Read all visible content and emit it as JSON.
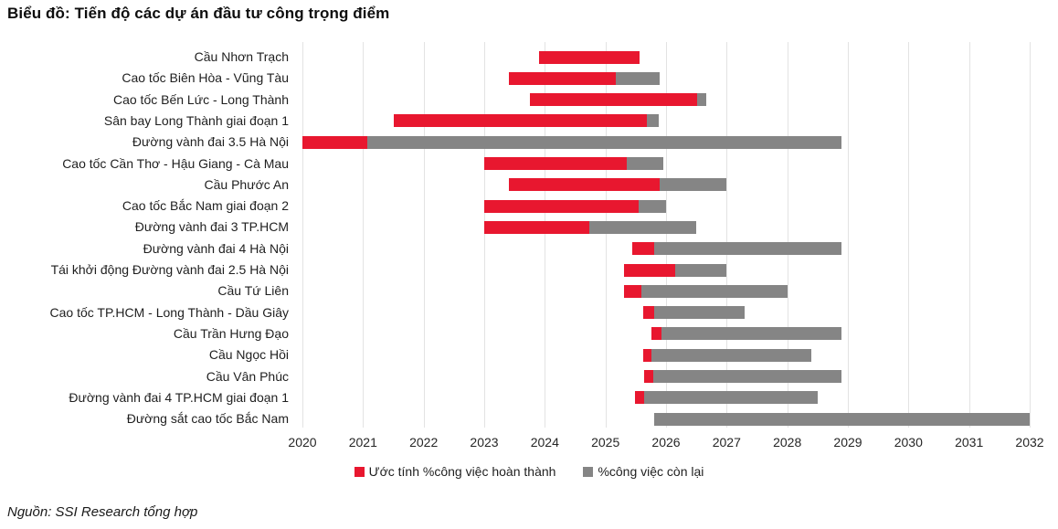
{
  "title": "Biểu đồ: Tiến độ các dự án đầu tư công trọng điểm",
  "source": "Nguồn: SSI Research tổng hợp",
  "colors": {
    "completed": "#E8172F",
    "remaining": "#858585",
    "gridline": "#E3E3E3"
  },
  "chart_data": {
    "type": "bar",
    "subtype": "horizontal-gantt-progress",
    "title": "Biểu đồ: Tiến độ các dự án đầu tư công trọng điểm",
    "xlabel": "",
    "ylabel": "",
    "grid": "vertical",
    "legend_position": "bottom-center",
    "x_axis": {
      "min": 2020,
      "max": 2032,
      "ticks": [
        2020,
        2021,
        2022,
        2023,
        2024,
        2025,
        2026,
        2027,
        2028,
        2029,
        2030,
        2031,
        2032
      ]
    },
    "legend": [
      {
        "key": "completed",
        "label": "Ước tính %công việc hoàn thành",
        "color": "#E8172F"
      },
      {
        "key": "remaining",
        "label": "%công việc còn lại",
        "color": "#858585"
      }
    ],
    "projects": [
      {
        "label": "Cầu Nhơn Trạch",
        "start": 2023.9,
        "complete_until": 2025.57,
        "end": 2025.57
      },
      {
        "label": "Cao tốc Biên Hòa - Vũng Tàu",
        "start": 2023.4,
        "complete_until": 2025.17,
        "end": 2025.9
      },
      {
        "label": "Cao tốc Bến Lức - Long Thành",
        "start": 2023.75,
        "complete_until": 2026.51,
        "end": 2026.66
      },
      {
        "label": "Sân bay Long Thành giai đoạn 1",
        "start": 2021.5,
        "complete_until": 2025.68,
        "end": 2025.88
      },
      {
        "label": "Đường vành đai 3.5 Hà Nội",
        "start": 2020.0,
        "complete_until": 2021.07,
        "end": 2028.9
      },
      {
        "label": "Cao tốc Cần Thơ - Hậu Giang - Cà Mau",
        "start": 2023.0,
        "complete_until": 2025.35,
        "end": 2025.96
      },
      {
        "label": "Cầu Phước An",
        "start": 2023.4,
        "complete_until": 2025.9,
        "end": 2027.0
      },
      {
        "label": "Cao tốc Bắc Nam giai đoạn 2",
        "start": 2023.0,
        "complete_until": 2025.54,
        "end": 2026.0
      },
      {
        "label": "Đường vành đai 3 TP.HCM",
        "start": 2023.0,
        "complete_until": 2024.73,
        "end": 2026.5
      },
      {
        "label": "Đường vành đai 4 Hà Nội",
        "start": 2025.44,
        "complete_until": 2025.81,
        "end": 2028.9
      },
      {
        "label": "Tái khởi động Đường vành đai 2.5 Hà Nội",
        "start": 2025.31,
        "complete_until": 2026.15,
        "end": 2027.0
      },
      {
        "label": "Cầu Tứ Liên",
        "start": 2025.31,
        "complete_until": 2025.59,
        "end": 2028.0
      },
      {
        "label": "Cao tốc TP.HCM - Long Thành - Dầu Giây",
        "start": 2025.62,
        "complete_until": 2025.8,
        "end": 2027.3
      },
      {
        "label": "Cầu Trần Hưng Đạo",
        "start": 2025.76,
        "complete_until": 2025.92,
        "end": 2028.9
      },
      {
        "label": "Cầu Ngọc Hồi",
        "start": 2025.62,
        "complete_until": 2025.76,
        "end": 2028.4
      },
      {
        "label": "Cầu Vân Phúc",
        "start": 2025.64,
        "complete_until": 2025.79,
        "end": 2028.9
      },
      {
        "label": "Đường vành đai 4 TP.HCM giai đoạn 1",
        "start": 2025.49,
        "complete_until": 2025.64,
        "end": 2028.5
      },
      {
        "label": "Đường sắt cao tốc Bắc Nam",
        "start": 2025.8,
        "complete_until": 2025.8,
        "end": 2032.0
      }
    ]
  }
}
